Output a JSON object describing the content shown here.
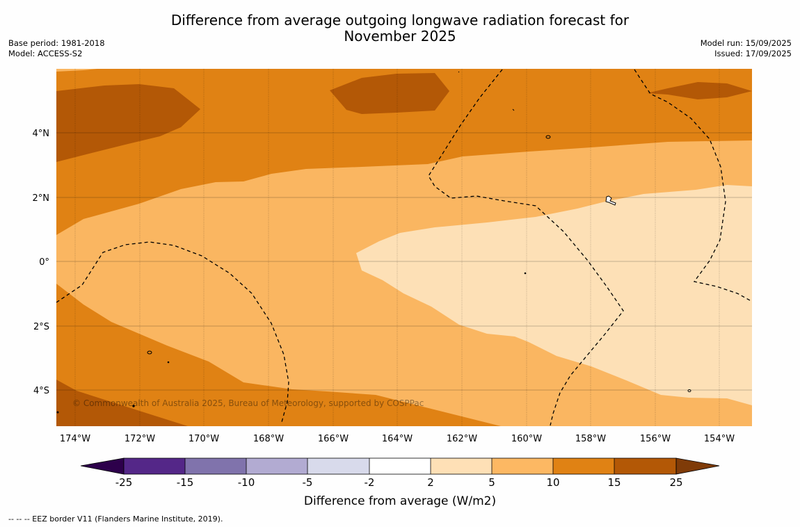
{
  "title": {
    "line1": "Difference from average outgoing longwave radiation forecast for",
    "line2": "November 2025"
  },
  "meta_left": {
    "base_period": "Base period: 1981-2018",
    "model": "Model: ACCESS-S2"
  },
  "meta_right": {
    "model_run": "Model run: 15/09/2025",
    "issued": "Issued: 17/09/2025"
  },
  "map": {
    "lon_labels": [
      "174°W",
      "172°W",
      "170°W",
      "168°W",
      "166°W",
      "164°W",
      "162°W",
      "160°W",
      "158°W",
      "156°W",
      "154°W"
    ],
    "lat_labels": [
      "4°N",
      "2°N",
      "0°",
      "2°S",
      "4°S"
    ],
    "copyright": "© Commonwealth of Australia 2025, Bureau of Meteorology, supported by COSPPac",
    "fill_colors": {
      "2_to_5": "#fde0b6",
      "5_to_10": "#fab661",
      "10_to_15": "#e08214",
      "15_to_25": "#b35806"
    }
  },
  "colorbar": {
    "title": "Difference from average (W/m2)",
    "tick_labels": [
      "-25",
      "-15",
      "-10",
      "-5",
      "-2",
      "2",
      "5",
      "10",
      "15",
      "25"
    ],
    "colors": [
      "#542788",
      "#8073ac",
      "#b2abd2",
      "#d8daeb",
      "#ffffff",
      "#fee0b6",
      "#fdb863",
      "#e08214",
      "#b35806"
    ],
    "under_color": "#2d004b",
    "over_color": "#7f3b08"
  },
  "footnote": "--  --  -- EEZ border V11 (Flanders Marine Institute, 2019)."
}
